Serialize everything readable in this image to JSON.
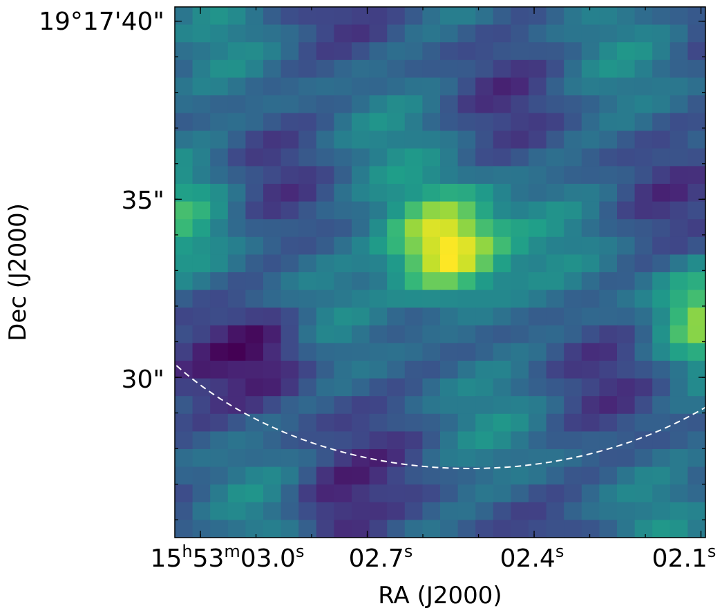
{
  "chart_data": {
    "type": "heatmap",
    "colormap": "viridis",
    "xlabel": "RA (J2000)",
    "ylabel": "Dec (J2000)",
    "x_ticks": [
      {
        "ra_s": 3.0,
        "label_main": "15",
        "label_sup1": "h",
        "label_mid": "53",
        "label_sup2": "m",
        "label_end": "03.0",
        "label_sup3": "s"
      },
      {
        "ra_s": 2.7,
        "label_main": "02.7",
        "label_sup3": "s"
      },
      {
        "ra_s": 2.4,
        "label_main": "02.4",
        "label_sup3": "s"
      },
      {
        "ra_s": 2.1,
        "label_main": "02.1",
        "label_sup3": "s"
      }
    ],
    "y_ticks": [
      {
        "dec_arcsec": 40,
        "label": "19°17'40\""
      },
      {
        "dec_arcsec": 35,
        "label": "35\""
      },
      {
        "dec_arcsec": 30,
        "label": "30\""
      }
    ],
    "xlim_ra_s": [
      3.046,
      2.092
    ],
    "ylim_dec_arcsec": [
      25.5,
      40.4
    ],
    "grid": false,
    "overlays": [
      {
        "type": "dashed-ellipse",
        "color": "#ffffff"
      }
    ],
    "pixel_grid": {
      "cols": 30,
      "rows": 30
    },
    "sources": [
      {
        "ra_s": 2.56,
        "dec_arcsec": 33.6,
        "peak": 1.0,
        "sigma_pix": 2.2
      },
      {
        "ra_s": 2.1,
        "dec_arcsec": 31.8,
        "peak": 0.45,
        "sigma_pix": 2.0
      },
      {
        "ra_s": 3.02,
        "dec_arcsec": 34.6,
        "peak": 0.25,
        "sigma_pix": 2.5
      }
    ]
  }
}
